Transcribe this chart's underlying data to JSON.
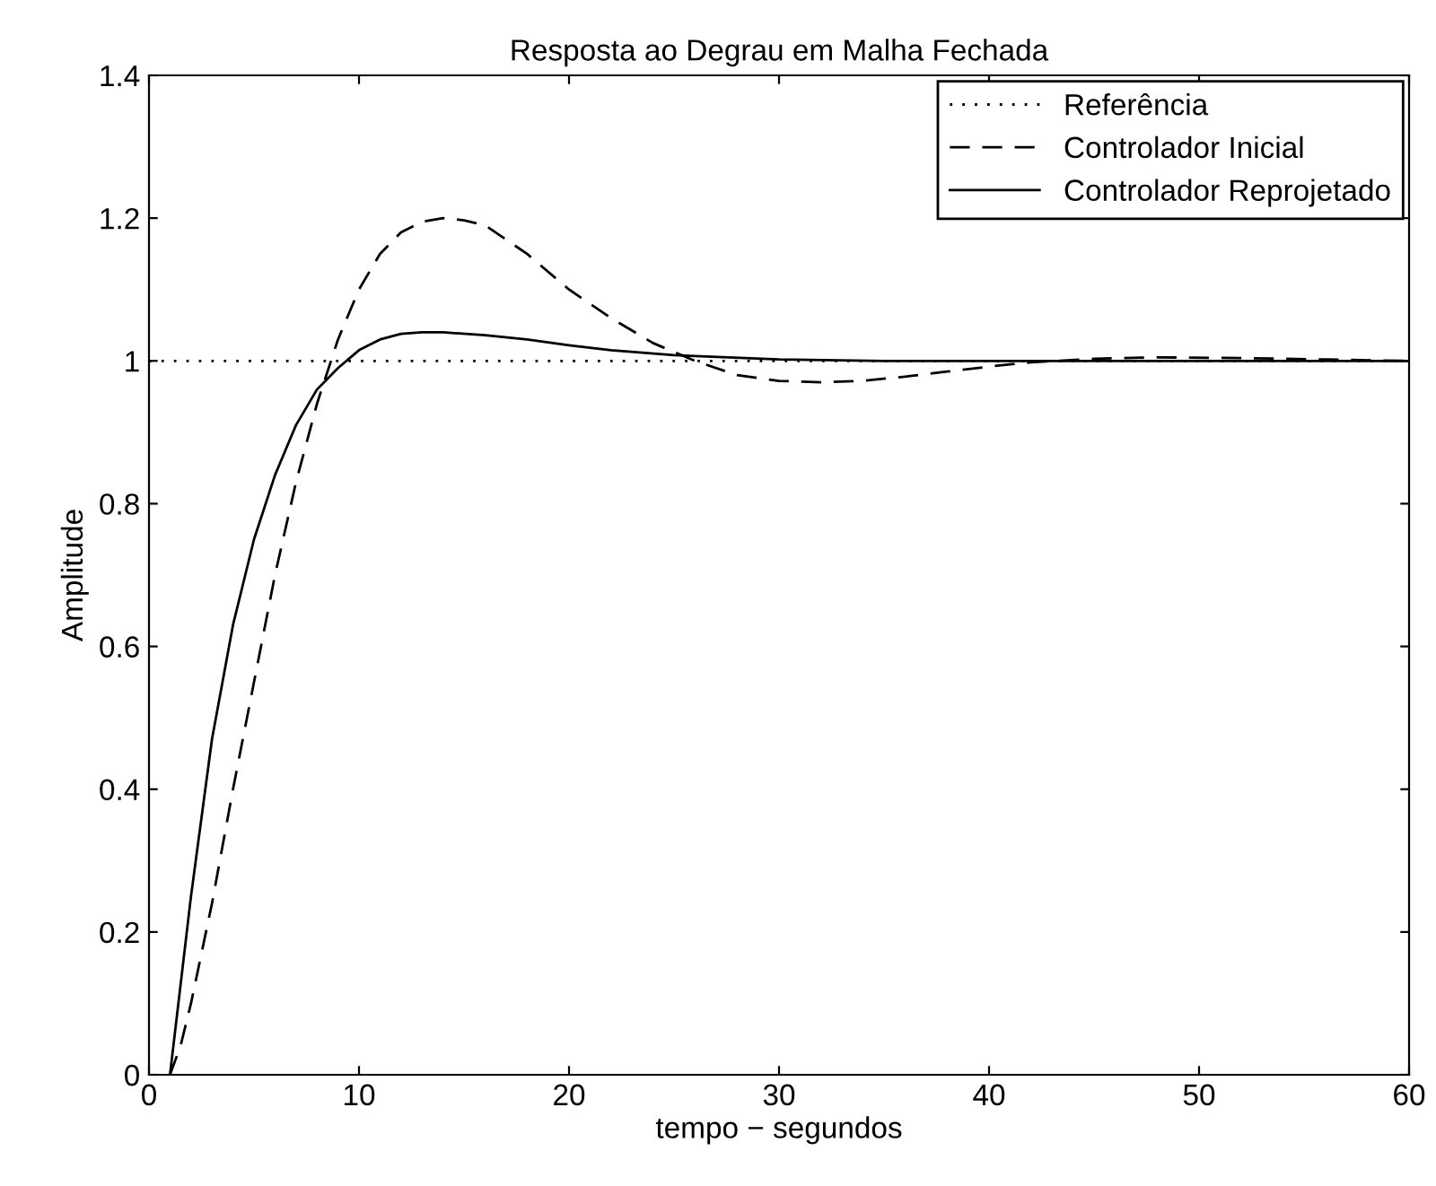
{
  "chart_data": {
    "type": "line",
    "title": "Resposta ao Degrau em Malha Fechada",
    "xlabel": "tempo − segundos",
    "ylabel": "Amplitude",
    "xlim": [
      0,
      60
    ],
    "ylim": [
      0,
      1.4
    ],
    "xticks": [
      0,
      10,
      20,
      30,
      40,
      50,
      60
    ],
    "yticks": [
      0,
      0.2,
      0.4,
      0.6,
      0.8,
      1,
      1.2,
      1.4
    ],
    "grid": false,
    "legend": "top right",
    "series": [
      {
        "name": "Referência",
        "color": "#000000",
        "line_style": "dotted",
        "x": [
          0,
          60
        ],
        "values": [
          1,
          1
        ]
      },
      {
        "name": "Controlador Inicial",
        "color": "#000000",
        "line_style": "dashed",
        "x": [
          1,
          1.5,
          2,
          3,
          4,
          5,
          6,
          7,
          8,
          9,
          10,
          11,
          12,
          13,
          14,
          15,
          16,
          18,
          20,
          22,
          24,
          26,
          28,
          30,
          32,
          34,
          36,
          38,
          40,
          42,
          45,
          48,
          52,
          56,
          60
        ],
        "values": [
          0,
          0.04,
          0.1,
          0.24,
          0.4,
          0.55,
          0.7,
          0.83,
          0.94,
          1.03,
          1.1,
          1.15,
          1.18,
          1.195,
          1.2,
          1.197,
          1.19,
          1.15,
          1.1,
          1.06,
          1.025,
          1.0,
          0.98,
          0.972,
          0.97,
          0.972,
          0.978,
          0.985,
          0.992,
          0.998,
          1.003,
          1.005,
          1.004,
          1.002,
          1.0
        ]
      },
      {
        "name": "Controlador Reprojetado",
        "color": "#000000",
        "line_style": "solid",
        "x": [
          1,
          2,
          3,
          4,
          5,
          6,
          7,
          8,
          9,
          10,
          11,
          12,
          13,
          14,
          16,
          18,
          20,
          22,
          25,
          30,
          35,
          60
        ],
        "values": [
          0,
          0.25,
          0.47,
          0.63,
          0.75,
          0.84,
          0.91,
          0.96,
          0.99,
          1.015,
          1.03,
          1.038,
          1.04,
          1.04,
          1.036,
          1.03,
          1.022,
          1.015,
          1.008,
          1.002,
          1.0,
          1.0
        ]
      }
    ]
  }
}
